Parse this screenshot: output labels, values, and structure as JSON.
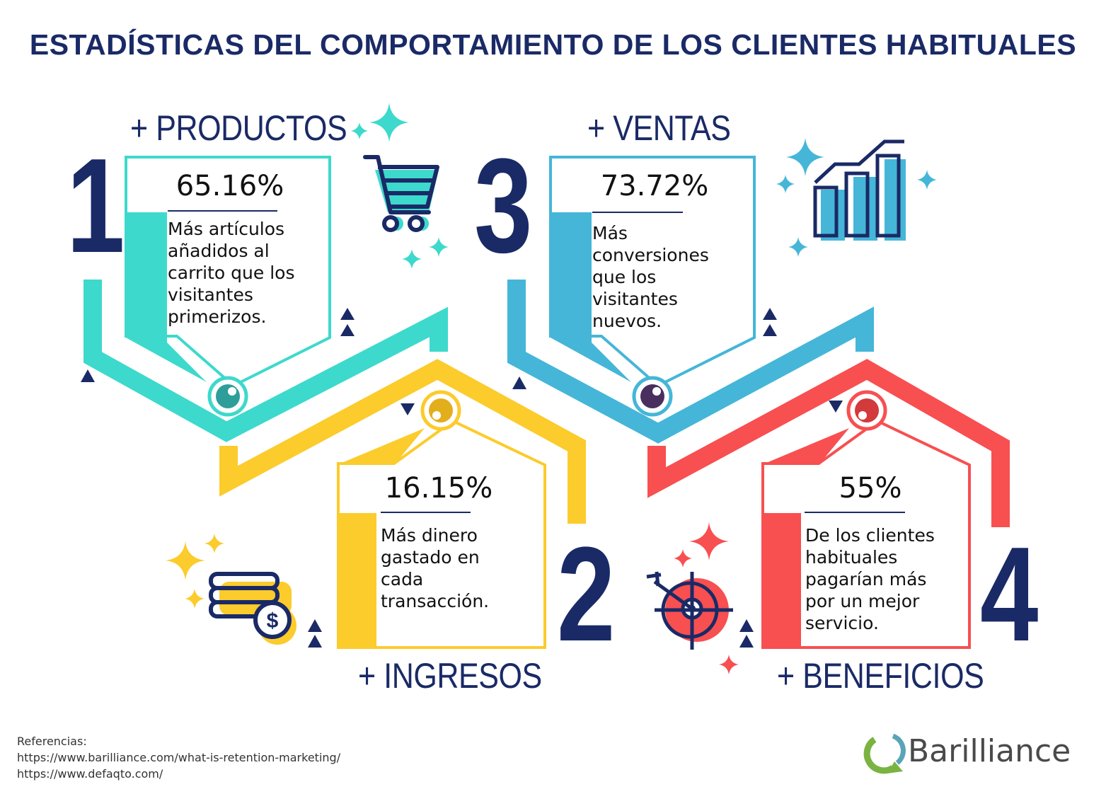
{
  "title": "ESTADÍSTICAS DEL COMPORTAMIENTO DE LOS CLIENTES HABITUALES",
  "colors": {
    "teal": "#3dd9cc",
    "yellow": "#fccb2c",
    "blue": "#45b6d8",
    "red": "#f84f51",
    "navy": "#1a2a66"
  },
  "stats": [
    {
      "number": "1",
      "category": "+ PRODUCTOS",
      "percent": "65.16%",
      "description": [
        "Más artículos",
        "añadidos al",
        "carrito que los",
        "visitantes",
        "primerizos."
      ],
      "icon": "shopping-cart-icon"
    },
    {
      "number": "2",
      "category": "+ INGRESOS",
      "percent": "16.15%",
      "description": [
        "Más dinero",
        "gastado en",
        "cada",
        "transacción."
      ],
      "icon": "money-stack-dollar-icon"
    },
    {
      "number": "3",
      "category": "+ VENTAS",
      "percent": "73.72%",
      "description": [
        "Más",
        "conversiones",
        "que los",
        "visitantes",
        "nuevos."
      ],
      "icon": "bar-chart-growth-icon"
    },
    {
      "number": "4",
      "category": "+ BENEFICIOS",
      "percent": "55%",
      "description": [
        "De los clientes",
        "habituales",
        "pagarían más",
        "por un mejor",
        "servicio."
      ],
      "icon": "target-arrow-icon"
    }
  ],
  "references": {
    "label": "Referencias:",
    "links": [
      "https://www.barilliance.com/what-is-retention-marketing/",
      "https://www.defaqto.com/"
    ]
  },
  "brand": {
    "name": "Barilliance",
    "logo_icon": "barilliance-logo-icon"
  }
}
